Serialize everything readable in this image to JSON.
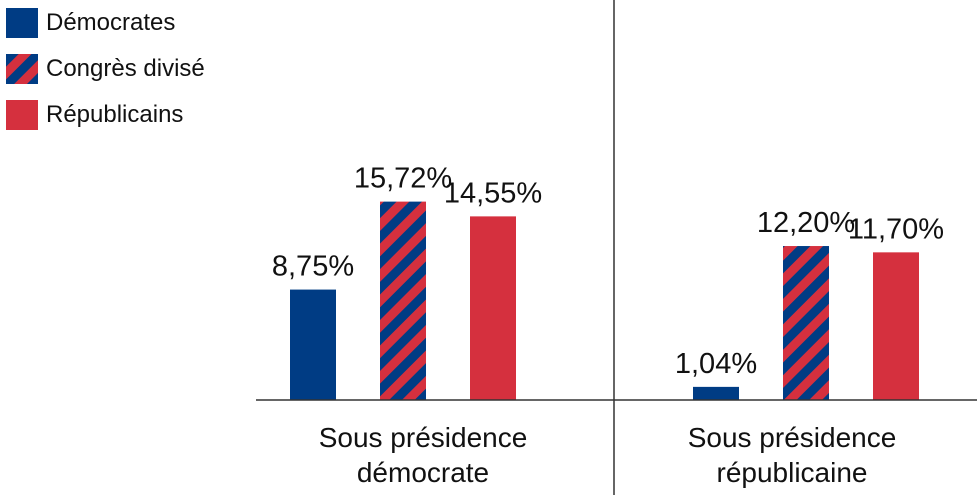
{
  "chart_data": {
    "type": "bar",
    "title": "",
    "xlabel": "",
    "ylabel": "",
    "ylim": [
      0,
      16
    ],
    "grid": false,
    "legend_position": "top-left",
    "categories": [
      [
        "Sous présidence",
        "démocrate"
      ],
      [
        "Sous présidence",
        "républicaine"
      ]
    ],
    "series": [
      {
        "name": "Démocrates",
        "values": [
          8.75,
          1.04
        ],
        "labels": [
          "8,75%",
          "1,04%"
        ],
        "color": "#003C84",
        "pattern": "solid"
      },
      {
        "name": "Congrès divisé",
        "values": [
          15.72,
          12.2
        ],
        "labels": [
          "15,72%",
          "12,20%"
        ],
        "color": "#D5303E",
        "color2": "#003C84",
        "pattern": "diagonal-stripes"
      },
      {
        "name": "Républicains",
        "values": [
          14.55,
          11.7
        ],
        "labels": [
          "14,55%",
          "11,70%"
        ],
        "color": "#D5303E",
        "pattern": "solid"
      }
    ]
  }
}
